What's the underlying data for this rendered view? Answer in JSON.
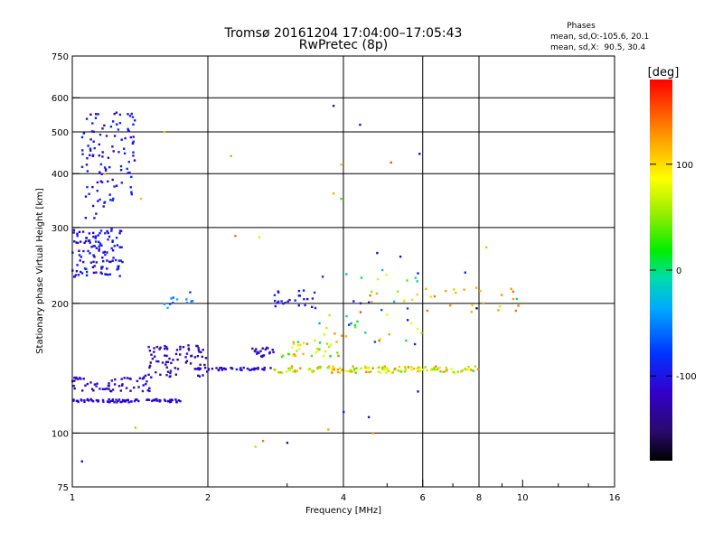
{
  "chart_data": {
    "type": "scatter",
    "title": "Tromsø 20161204 17:04:00–17:05:43",
    "subtitle": "RwPretec (8p)",
    "xlabel": "Frequency [MHz]",
    "ylabel": "Stationary phase Virtual Height [km]",
    "xscale": "log",
    "yscale": "log",
    "xlim": [
      1,
      16
    ],
    "ylim": [
      75,
      750
    ],
    "x_ticks": [
      1,
      2,
      4,
      6,
      8,
      10,
      16
    ],
    "y_ticks": [
      75,
      100,
      200,
      300,
      400,
      500,
      600,
      750
    ],
    "grid_x": [
      2,
      4,
      6,
      8
    ],
    "grid_y": [
      100,
      200,
      300,
      400,
      500,
      600
    ],
    "stats": {
      "header": "Phases",
      "line_o": "mean, sd,O:-105.6, 20.1",
      "line_x": "mean, sd,X:  90.5, 30.4"
    },
    "colorbar": {
      "label": "[deg]",
      "range": [
        -180,
        180
      ],
      "ticks": [
        100,
        0,
        -100
      ]
    },
    "clusters": [
      {
        "name": "",
        "f": [
          1.0,
          1.3
        ],
        "h": [
          230,
          300
        ],
        "phase": [
          -120,
          -80
        ],
        "n": 120,
        "shape": "band"
      },
      {
        "name": "",
        "f": [
          1.05,
          1.38
        ],
        "h": [
          300,
          560
        ],
        "phase": [
          -120,
          -80
        ],
        "n": 110,
        "shape": "fan"
      },
      {
        "name": "",
        "f": [
          1.0,
          1.75
        ],
        "h": [
          118,
          120
        ],
        "phase": [
          -120,
          -100
        ],
        "n": 80,
        "shape": "flat"
      },
      {
        "name": "",
        "f": [
          1.0,
          1.5
        ],
        "h": [
          125,
          135
        ],
        "phase": [
          -130,
          -100
        ],
        "n": 60,
        "shape": "flat"
      },
      {
        "name": "",
        "f": [
          1.45,
          2.0
        ],
        "h": [
          135,
          160
        ],
        "phase": [
          -140,
          -100
        ],
        "n": 80,
        "shape": "flat"
      },
      {
        "name": "",
        "f": [
          1.9,
          2.8
        ],
        "h": [
          140,
          142
        ],
        "phase": [
          -130,
          -100
        ],
        "n": 40,
        "shape": "flat"
      },
      {
        "name": "",
        "f": [
          2.5,
          2.8
        ],
        "h": [
          150,
          158
        ],
        "phase": [
          -130,
          -100
        ],
        "n": 20,
        "shape": "flat"
      },
      {
        "name": "",
        "f": [
          2.8,
          8.0
        ],
        "h": [
          138,
          143
        ],
        "phase": [
          30,
          140
        ],
        "n": 140,
        "shape": "flat"
      },
      {
        "name": "",
        "f": [
          2.9,
          3.9
        ],
        "h": [
          150,
          165
        ],
        "phase": [
          0,
          140
        ],
        "n": 35,
        "shape": "flat"
      },
      {
        "name": "",
        "f": [
          2.8,
          3.5
        ],
        "h": [
          195,
          215
        ],
        "phase": [
          -120,
          -80
        ],
        "n": 25,
        "shape": "flat"
      },
      {
        "name": "",
        "f": [
          3.5,
          6.0
        ],
        "h": [
          160,
          240
        ],
        "phase": [
          -110,
          160
        ],
        "n": 50,
        "shape": "scatter"
      },
      {
        "name": "",
        "f": [
          6.0,
          9.8
        ],
        "h": [
          190,
          220
        ],
        "phase": [
          100,
          150
        ],
        "n": 20,
        "shape": "scatter"
      },
      {
        "name": "",
        "f": [
          1.6,
          1.85
        ],
        "h": [
          195,
          215
        ],
        "phase": [
          -90,
          -20
        ],
        "n": 12,
        "shape": "scatter"
      }
    ],
    "points": [
      {
        "f": 1.05,
        "h": 86,
        "p": -110
      },
      {
        "f": 2.25,
        "h": 440,
        "p": 40
      },
      {
        "f": 2.3,
        "h": 287,
        "p": 140
      },
      {
        "f": 2.6,
        "h": 285,
        "p": 100
      },
      {
        "f": 2.65,
        "h": 96,
        "p": 140
      },
      {
        "f": 2.55,
        "h": 93,
        "p": 110
      },
      {
        "f": 3.0,
        "h": 95,
        "p": -110
      },
      {
        "f": 3.8,
        "h": 575,
        "p": -110
      },
      {
        "f": 4.35,
        "h": 520,
        "p": -110
      },
      {
        "f": 3.95,
        "h": 420,
        "p": 110
      },
      {
        "f": 3.95,
        "h": 350,
        "p": 30
      },
      {
        "f": 3.8,
        "h": 360,
        "p": 120
      },
      {
        "f": 5.9,
        "h": 445,
        "p": -110
      },
      {
        "f": 5.1,
        "h": 425,
        "p": 150
      },
      {
        "f": 4.75,
        "h": 262,
        "p": -120
      },
      {
        "f": 5.35,
        "h": 257,
        "p": -110
      },
      {
        "f": 5.85,
        "h": 235,
        "p": -100
      },
      {
        "f": 7.45,
        "h": 236,
        "p": -90
      },
      {
        "f": 8.3,
        "h": 270,
        "p": 110
      },
      {
        "f": 4.0,
        "h": 112,
        "p": -90
      },
      {
        "f": 4.55,
        "h": 109,
        "p": -120
      },
      {
        "f": 3.7,
        "h": 102,
        "p": 120
      },
      {
        "f": 4.65,
        "h": 100,
        "p": 130
      },
      {
        "f": 1.38,
        "h": 103,
        "p": 50
      },
      {
        "f": 1.6,
        "h": 500,
        "p": 110
      },
      {
        "f": 1.18,
        "h": 400,
        "p": 120
      },
      {
        "f": 1.42,
        "h": 350,
        "p": 110
      },
      {
        "f": 6.9,
        "h": 198,
        "p": 130
      },
      {
        "f": 7.9,
        "h": 195,
        "p": -160
      },
      {
        "f": 8.9,
        "h": 197,
        "p": 100
      },
      {
        "f": 9.7,
        "h": 205,
        "p": -20
      },
      {
        "f": 5.85,
        "h": 125,
        "p": -100
      }
    ]
  }
}
